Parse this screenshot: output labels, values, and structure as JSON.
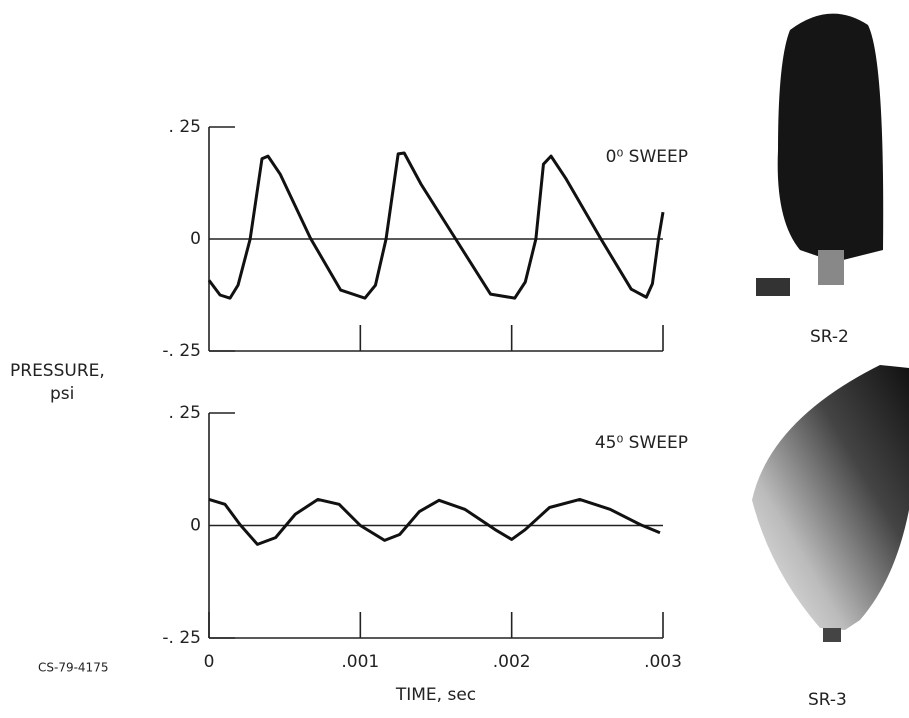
{
  "chart_data": [
    {
      "type": "line",
      "annotation": "0⁰ SWEEP",
      "x": [
        0,
        7.3e-05,
        0.000139,
        0.000192,
        0.000272,
        0.00035,
        0.00039,
        0.00047,
        0.00067,
        0.00087,
        0.00103,
        0.0011,
        0.00117,
        0.00125,
        0.00129,
        0.0014,
        0.00163,
        0.00186,
        0.00202,
        0.00209,
        0.00216,
        0.00221,
        0.00226,
        0.00236,
        0.00259,
        0.00279,
        0.00289,
        0.00293,
        0.00297,
        0.003
      ],
      "values": [
        -0.092,
        -0.125,
        -0.132,
        -0.103,
        0,
        0.179,
        0.185,
        0.145,
        0.002,
        -0.114,
        -0.132,
        -0.103,
        0,
        0.19,
        0.192,
        0.123,
        0,
        -0.123,
        -0.132,
        -0.096,
        0,
        0.167,
        0.185,
        0.134,
        0,
        -0.112,
        -0.13,
        -0.1,
        0,
        0.06
      ],
      "color": "#111111",
      "xlim": [
        0,
        0.003
      ],
      "xticks": [
        0.001,
        0.002,
        0.003
      ],
      "ylim": [
        -0.25,
        0.25
      ],
      "yticks": [
        {
          "value": 0.25,
          "label": ". 25"
        },
        0,
        {
          "value": -0.25,
          "label": "-. 25"
        }
      ]
    },
    {
      "type": "line",
      "annotation": "45⁰ SWEEP",
      "x": [
        0,
        0.000106,
        0.000205,
        0.00032,
        0.00044,
        0.00057,
        0.00072,
        0.00086,
        0.001,
        0.00116,
        0.00126,
        0.00139,
        0.00152,
        0.00169,
        0.00189,
        0.002,
        0.00209,
        0.00225,
        0.00245,
        0.00265,
        0.00285,
        0.00298
      ],
      "values": [
        0.058,
        0.047,
        0.002,
        -0.042,
        -0.027,
        0.025,
        0.058,
        0.047,
        0,
        -0.033,
        -0.02,
        0.031,
        0.056,
        0.036,
        -0.009,
        -0.031,
        -0.009,
        0.04,
        0.058,
        0.036,
        0.002,
        -0.016
      ],
      "color": "#111111",
      "xlim": [
        0,
        0.003
      ],
      "xticks": [
        0,
        {
          "value": 0.001,
          "label": ".001"
        },
        {
          "value": 0.002,
          "label": ".002"
        },
        {
          "value": 0.003,
          "label": ".003"
        }
      ],
      "ylim": [
        -0.25,
        0.25
      ],
      "yticks": [
        {
          "value": 0.25,
          "label": ". 25"
        },
        0,
        {
          "value": -0.25,
          "label": "-. 25"
        }
      ]
    }
  ],
  "ylabel": [
    "PRESSURE,",
    "psi"
  ],
  "xlabel": "TIME, sec",
  "figure_id": "CS-79-4175",
  "photos": [
    "SR-2",
    "SR-3"
  ]
}
